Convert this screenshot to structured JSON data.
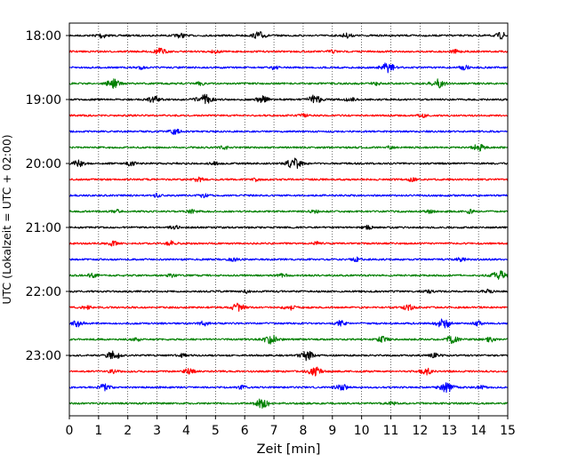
{
  "chart_data": {
    "type": "line",
    "title": "",
    "xlabel": "Zeit  [min]",
    "ylabel": "UTC (Lokalzeit = UTC + 02:00)",
    "xlim": [
      0,
      15
    ],
    "x_ticks": [
      "0",
      "1",
      "2",
      "3",
      "4",
      "5",
      "6",
      "7",
      "8",
      "9",
      "10",
      "11",
      "12",
      "13",
      "14",
      "15"
    ],
    "y_tick_labels": [
      "18:00",
      "19:00",
      "20:00",
      "21:00",
      "22:00",
      "23:00"
    ],
    "grid": "vertical-dotted",
    "colors": {
      "black": "#000000",
      "red": "#ff0000",
      "blue": "#0000ff",
      "green": "#008000"
    },
    "traces": [
      {
        "start": "18:00",
        "color": "black",
        "bursts": [
          [
            1.1,
            0.5
          ],
          [
            3.8,
            0.4
          ],
          [
            6.5,
            0.7
          ],
          [
            9.5,
            0.4
          ],
          [
            14.8,
            0.6
          ]
        ]
      },
      {
        "start": "18:15",
        "color": "red",
        "bursts": [
          [
            3.1,
            0.6
          ],
          [
            5.0,
            0.3
          ],
          [
            9.0,
            0.3
          ],
          [
            13.2,
            0.3
          ]
        ]
      },
      {
        "start": "18:30",
        "color": "blue",
        "bursts": [
          [
            2.4,
            0.3
          ],
          [
            7.0,
            0.3
          ],
          [
            10.9,
            0.9
          ],
          [
            13.5,
            0.4
          ]
        ]
      },
      {
        "start": "18:45",
        "color": "green",
        "bursts": [
          [
            1.5,
            0.8
          ],
          [
            4.5,
            0.3
          ],
          [
            10.5,
            0.3
          ],
          [
            12.6,
            0.8
          ]
        ]
      },
      {
        "start": "19:00",
        "color": "black",
        "bursts": [
          [
            2.9,
            0.6
          ],
          [
            4.6,
            1.0
          ],
          [
            6.6,
            0.6
          ],
          [
            8.4,
            0.8
          ],
          [
            9.6,
            0.4
          ]
        ]
      },
      {
        "start": "19:15",
        "color": "red",
        "bursts": [
          [
            8.0,
            0.3
          ],
          [
            12.1,
            0.3
          ]
        ]
      },
      {
        "start": "19:30",
        "color": "blue",
        "bursts": [
          [
            3.6,
            0.5
          ]
        ]
      },
      {
        "start": "19:45",
        "color": "green",
        "bursts": [
          [
            5.3,
            0.3
          ],
          [
            11.0,
            0.3
          ],
          [
            14.0,
            0.6
          ]
        ]
      },
      {
        "start": "20:00",
        "color": "black",
        "bursts": [
          [
            0.3,
            0.6
          ],
          [
            2.1,
            0.4
          ],
          [
            5.0,
            0.3
          ],
          [
            7.7,
            1.0
          ]
        ]
      },
      {
        "start": "20:15",
        "color": "red",
        "bursts": [
          [
            4.4,
            0.4
          ],
          [
            6.4,
            0.3
          ],
          [
            11.7,
            0.3
          ]
        ]
      },
      {
        "start": "20:30",
        "color": "blue",
        "bursts": [
          [
            3.0,
            0.3
          ],
          [
            4.6,
            0.3
          ]
        ]
      },
      {
        "start": "20:45",
        "color": "green",
        "bursts": [
          [
            1.6,
            0.3
          ],
          [
            4.2,
            0.3
          ],
          [
            8.4,
            0.3
          ],
          [
            12.3,
            0.3
          ],
          [
            13.7,
            0.3
          ]
        ]
      },
      {
        "start": "21:00",
        "color": "black",
        "bursts": [
          [
            3.6,
            0.3
          ],
          [
            10.2,
            0.3
          ]
        ]
      },
      {
        "start": "21:15",
        "color": "red",
        "bursts": [
          [
            1.5,
            0.4
          ],
          [
            3.5,
            0.4
          ],
          [
            8.5,
            0.3
          ]
        ]
      },
      {
        "start": "21:30",
        "color": "blue",
        "bursts": [
          [
            5.6,
            0.3
          ],
          [
            9.8,
            0.4
          ],
          [
            13.4,
            0.3
          ]
        ]
      },
      {
        "start": "21:45",
        "color": "green",
        "bursts": [
          [
            0.8,
            0.4
          ],
          [
            3.5,
            0.3
          ],
          [
            7.3,
            0.3
          ],
          [
            14.7,
            0.9
          ]
        ]
      },
      {
        "start": "22:00",
        "color": "black",
        "bursts": [
          [
            6.0,
            0.3
          ],
          [
            12.3,
            0.3
          ],
          [
            14.3,
            0.3
          ]
        ]
      },
      {
        "start": "22:15",
        "color": "red",
        "bursts": [
          [
            0.6,
            0.3
          ],
          [
            5.8,
            0.8
          ],
          [
            7.5,
            0.6
          ],
          [
            11.6,
            0.5
          ]
        ]
      },
      {
        "start": "22:30",
        "color": "blue",
        "bursts": [
          [
            0.3,
            0.6
          ],
          [
            4.6,
            0.4
          ],
          [
            9.3,
            0.5
          ],
          [
            12.8,
            0.9
          ],
          [
            14.0,
            0.4
          ]
        ]
      },
      {
        "start": "22:45",
        "color": "green",
        "bursts": [
          [
            2.3,
            0.3
          ],
          [
            6.9,
            0.9
          ],
          [
            10.7,
            0.5
          ],
          [
            13.1,
            0.7
          ],
          [
            14.4,
            0.4
          ]
        ]
      },
      {
        "start": "23:00",
        "color": "black",
        "bursts": [
          [
            1.5,
            0.8
          ],
          [
            3.9,
            0.3
          ],
          [
            8.1,
            0.9
          ],
          [
            12.5,
            0.4
          ]
        ]
      },
      {
        "start": "23:15",
        "color": "red",
        "bursts": [
          [
            1.5,
            0.3
          ],
          [
            4.1,
            0.5
          ],
          [
            8.4,
            0.8
          ],
          [
            12.2,
            0.6
          ]
        ]
      },
      {
        "start": "23:30",
        "color": "blue",
        "bursts": [
          [
            1.2,
            0.6
          ],
          [
            5.9,
            0.3
          ],
          [
            9.3,
            0.6
          ],
          [
            12.9,
            0.9
          ],
          [
            14.1,
            0.3
          ]
        ]
      },
      {
        "start": "23:45",
        "color": "green",
        "bursts": [
          [
            6.6,
            0.9
          ],
          [
            11.0,
            0.3
          ]
        ]
      }
    ]
  }
}
